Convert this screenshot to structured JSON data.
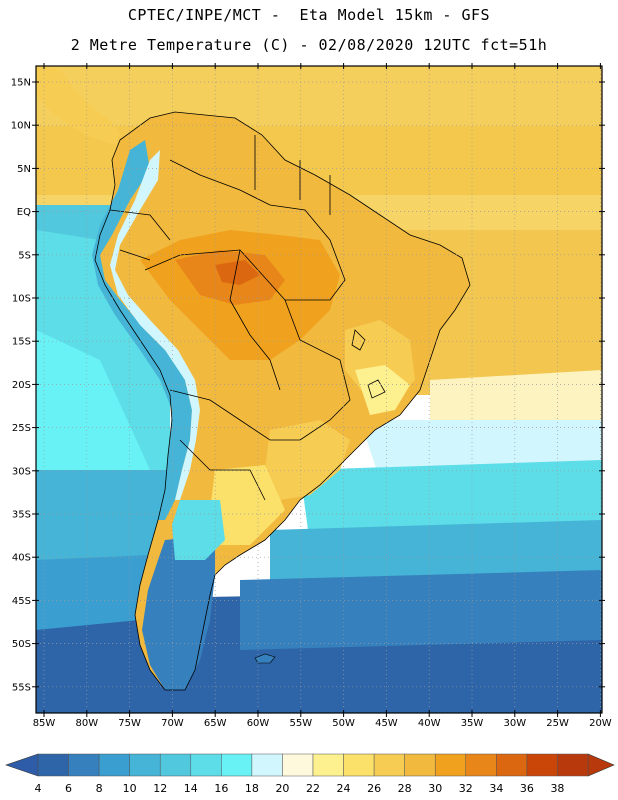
{
  "header": {
    "line1": "CPTEC/INPE/MCT -  Eta Model 15km - GFS",
    "line2": "2 Metre Temperature (C) - 02/08/2020 12UTC fct=51h"
  },
  "map": {
    "latitude_labels": [
      "15N",
      "10N",
      "5N",
      "EQ",
      "5S",
      "10S",
      "15S",
      "20S",
      "25S",
      "30S",
      "35S",
      "40S",
      "45S",
      "50S",
      "55S"
    ],
    "longitude_labels": [
      "85W",
      "80W",
      "75W",
      "70W",
      "65W",
      "60W",
      "55W",
      "50W",
      "45W",
      "40W",
      "35W",
      "30W",
      "25W",
      "20W"
    ]
  },
  "colorbar": {
    "labels": [
      "4",
      "6",
      "8",
      "10",
      "12",
      "14",
      "16",
      "18",
      "20",
      "22",
      "24",
      "26",
      "28",
      "30",
      "32",
      "34",
      "36",
      "38"
    ],
    "colors": [
      "#2e64a8",
      "#3580bd",
      "#3a9ed0",
      "#45b4d6",
      "#52c8de",
      "#5ddde8",
      "#68f2f6",
      "#d2f6fd",
      "#fef9dd",
      "#fdf08e",
      "#fbe06a",
      "#f6cc53",
      "#f2b93f",
      "#f0a21e",
      "#e88619",
      "#dc6711",
      "#c94508",
      "#b83a0c"
    ],
    "under_color": "#2f5ca8",
    "over_color": "#b83a0c"
  }
}
